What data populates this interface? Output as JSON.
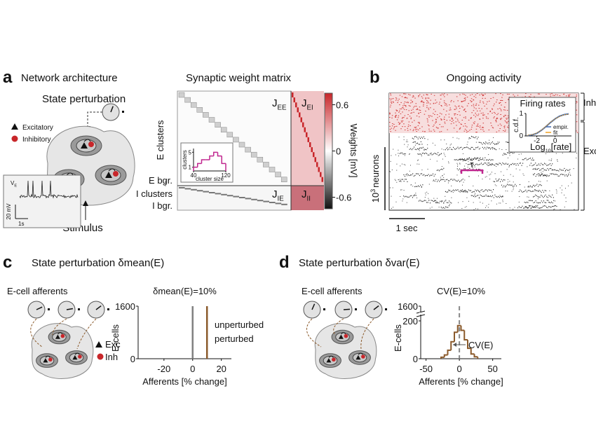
{
  "panel_a": {
    "letter": "a",
    "title": "Network architecture",
    "perturbation": "State perturbation",
    "legend": [
      "Excitatory",
      "Inhibitory"
    ],
    "stimulus": "Stimulus",
    "trace_label": {
      "main": "V",
      "sub": "E"
    },
    "scale_v": "20 mV",
    "scale_t": "1s"
  },
  "matrix": {
    "title": "Synaptic weight matrix",
    "blocks": [
      {
        "main": "J",
        "sub": "EE"
      },
      {
        "main": "J",
        "sub": "EI"
      },
      {
        "main": "J",
        "sub": "IE"
      },
      {
        "main": "J",
        "sub": "II"
      }
    ],
    "row_labels": [
      "E clusters",
      "E bgr.",
      "I clusters",
      "I bgr."
    ],
    "colorbar": {
      "label": "Weights [mV]",
      "lim": [
        -0.75,
        0.75
      ],
      "ticks": [
        0.6,
        0,
        -0.6
      ]
    },
    "inset": {
      "type": "histogram",
      "ylabel": "clusters",
      "xlabel": "cluster size",
      "bins": [
        40,
        50,
        60,
        70,
        80,
        90,
        100,
        110,
        120
      ],
      "counts": [
        1,
        2,
        3,
        3,
        4,
        5,
        4,
        2
      ],
      "xlim": [
        40,
        120
      ],
      "xticks": [
        40,
        120
      ],
      "ylim": [
        0,
        6
      ],
      "yticks": [
        1,
        5
      ],
      "color": "#c0268f"
    }
  },
  "panel_b": {
    "letter": "b",
    "title": "Ongoing activity",
    "groups": [
      "Inh",
      "Exc"
    ],
    "ylabel": {
      "main": "10",
      "sup": "3",
      "rest": "neurons"
    },
    "scale": "1 sec",
    "tau": "τ",
    "inset": {
      "type": "line",
      "title": "Firing rates",
      "ylabel": "c.d.f.",
      "xlabel": {
        "main": "Log",
        "sub": "10",
        "rest": "[rate]"
      },
      "x": [
        -3,
        -2.5,
        -2,
        -1.5,
        -1,
        -0.5,
        0,
        0.5,
        1,
        1.5
      ],
      "series": [
        {
          "name": "empir.",
          "color": "#3a66b0",
          "values": [
            0.02,
            0.05,
            0.12,
            0.25,
            0.42,
            0.6,
            0.76,
            0.88,
            0.95,
            0.98
          ]
        },
        {
          "name": "fit",
          "color": "#f0a020",
          "values": [
            0.03,
            0.06,
            0.13,
            0.26,
            0.43,
            0.61,
            0.76,
            0.87,
            0.94,
            0.97
          ]
        }
      ],
      "xlim": [
        -3.2,
        1.8
      ],
      "xticks": [
        -2,
        0
      ],
      "ylim": [
        0,
        1
      ],
      "yticks": [
        0,
        1
      ]
    }
  },
  "panel_c": {
    "letter": "c",
    "title": "State perturbation δmean(E)",
    "afferents": "E-cell afferents",
    "legend": [
      "Exc",
      "Inh"
    ],
    "chart": {
      "type": "bar",
      "title": "δmean(E)=10%",
      "xlabel": "Afferents [% change]",
      "ylabel": "E-cells",
      "series": [
        {
          "name": "unperturbed",
          "color": "#808080",
          "x": [
            0
          ],
          "values": [
            1600
          ]
        },
        {
          "name": "perturbed",
          "color": "#8b5a2b",
          "x": [
            10
          ],
          "values": [
            1600
          ]
        }
      ],
      "xlim": [
        -38,
        27
      ],
      "xticks": [
        -20,
        0,
        20
      ],
      "ylim": [
        0,
        1600
      ],
      "yticks": [
        0,
        1600
      ]
    }
  },
  "panel_d": {
    "letter": "d",
    "title": "State perturbation δvar(E)",
    "afferents": "E-cell afferents",
    "chart": {
      "type": "histogram",
      "title": "CV(E)=10%",
      "annotation": "CV(E)",
      "xlabel": "Afferents [% change]",
      "ylabel": "E-cells",
      "bins": [
        -27.5,
        -22.5,
        -17.5,
        -12.5,
        -7.5,
        -2.5,
        2.5,
        7.5,
        12.5,
        17.5,
        22.5,
        27.5
      ],
      "counts": [
        8,
        20,
        45,
        90,
        140,
        175,
        150,
        100,
        55,
        25,
        10
      ],
      "color": "#8b5a2b",
      "reference_x": 0,
      "broken_axis": true,
      "xlim": [
        -58,
        63
      ],
      "xticks": [
        -50,
        0,
        50
      ],
      "ylim": [
        0,
        1600
      ],
      "yticks": [
        0,
        200,
        1600
      ]
    }
  }
}
